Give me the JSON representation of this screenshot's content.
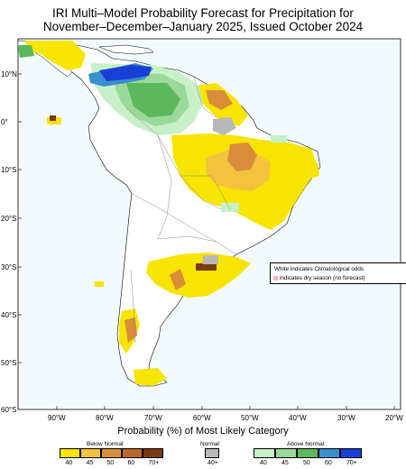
{
  "title": {
    "line1": "IRI Multi–Model Probability Forecast for Precipitation for",
    "line2": "November–December–January 2025, Issued October 2024"
  },
  "axes": {
    "lat_labels": [
      "10°N",
      "0°",
      "10°S",
      "20°S",
      "30°S",
      "40°S",
      "50°S",
      "60°S"
    ],
    "lon_labels": [
      "90°W",
      "80°W",
      "70°W",
      "60°W",
      "50°W",
      "40°W",
      "30°W",
      "20°W"
    ]
  },
  "note": {
    "line1": "White indicates Climatological odds",
    "line2": "indicates dry season (no forecast)"
  },
  "legend": {
    "title": "Probability (%) of Most Likely Category",
    "below": {
      "label": "Below Normal",
      "ticks": [
        "40",
        "45",
        "50",
        "60",
        "70+"
      ],
      "colors": [
        "#f7e400",
        "#f4c33e",
        "#d98d3a",
        "#b9682c",
        "#7a3b12"
      ]
    },
    "normal": {
      "label": "Normal",
      "ticks": [
        "40+"
      ],
      "colors": [
        "#b8b8b8"
      ]
    },
    "above": {
      "label": "Above Normal",
      "ticks": [
        "40",
        "45",
        "50",
        "60",
        "70+"
      ],
      "colors": [
        "#c8f0c8",
        "#9ad99a",
        "#5cb85c",
        "#3a8fd0",
        "#1a3fd6"
      ]
    }
  },
  "colors": {
    "ocean": "#f2fafd",
    "land": "#ffffff",
    "coast": "#000000",
    "border": "#888888"
  }
}
